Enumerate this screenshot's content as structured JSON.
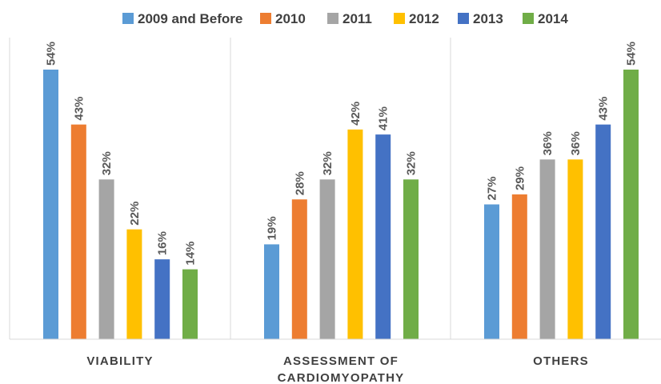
{
  "chart_data": {
    "type": "bar",
    "title": "",
    "xlabel": "",
    "ylabel": "",
    "ylim": [
      0,
      54
    ],
    "categories": [
      "VIABILITY",
      "ASSESSMENT OF CARDIOMYOPATHY",
      "OTHERS"
    ],
    "category_lines": [
      [
        "VIABILITY"
      ],
      [
        "ASSESSMENT OF",
        "CARDIOMYOPATHY"
      ],
      [
        "OTHERS"
      ]
    ],
    "value_suffix": "%",
    "legend_position": "top",
    "grid": false,
    "series": [
      {
        "name": "2009 and Before",
        "color": "#5B9BD5",
        "values": [
          54,
          19,
          27
        ]
      },
      {
        "name": "2010",
        "color": "#ED7D31",
        "values": [
          43,
          28,
          29
        ]
      },
      {
        "name": "2011",
        "color": "#A5A5A5",
        "values": [
          32,
          32,
          36
        ]
      },
      {
        "name": "2012",
        "color": "#FFC000",
        "values": [
          22,
          42,
          36
        ]
      },
      {
        "name": "2013",
        "color": "#4472C4",
        "values": [
          16,
          41,
          43
        ]
      },
      {
        "name": "2014",
        "color": "#70AD47",
        "values": [
          14,
          32,
          54
        ]
      }
    ]
  }
}
